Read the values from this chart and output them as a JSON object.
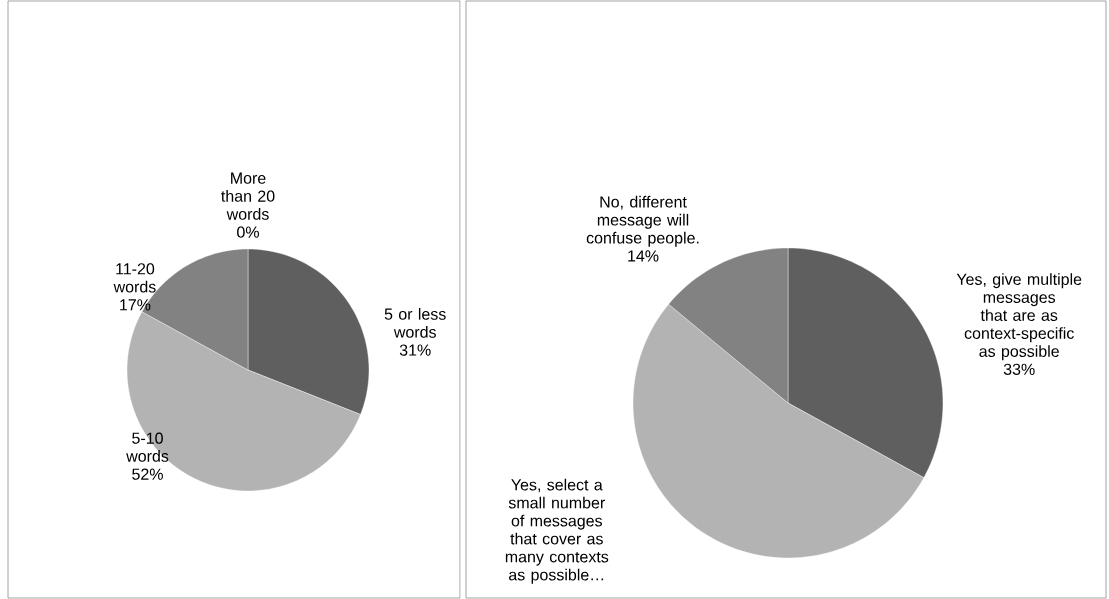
{
  "chart_data": [
    {
      "type": "pie",
      "categories": [
        "5 or less words",
        "5-10 words",
        "11-20 words",
        "More than 20 words"
      ],
      "values": [
        31,
        52,
        17,
        0
      ],
      "colors": [
        "#5f5f5f",
        "#b3b3b3",
        "#828282",
        "#d9d9d9"
      ],
      "value_labels": [
        "31%",
        "52%",
        "17%",
        "0%"
      ]
    },
    {
      "type": "pie",
      "categories": [
        "Yes, give multiple messages that are as context-specific as possible",
        "Yes, select a small number of messages that cover as many contexts as possible…",
        "No, different message will confuse people."
      ],
      "values": [
        33,
        53,
        14
      ],
      "colors": [
        "#5f5f5f",
        "#b3b3b3",
        "#828282"
      ],
      "value_labels": [
        "33%",
        null,
        "14%"
      ]
    }
  ]
}
